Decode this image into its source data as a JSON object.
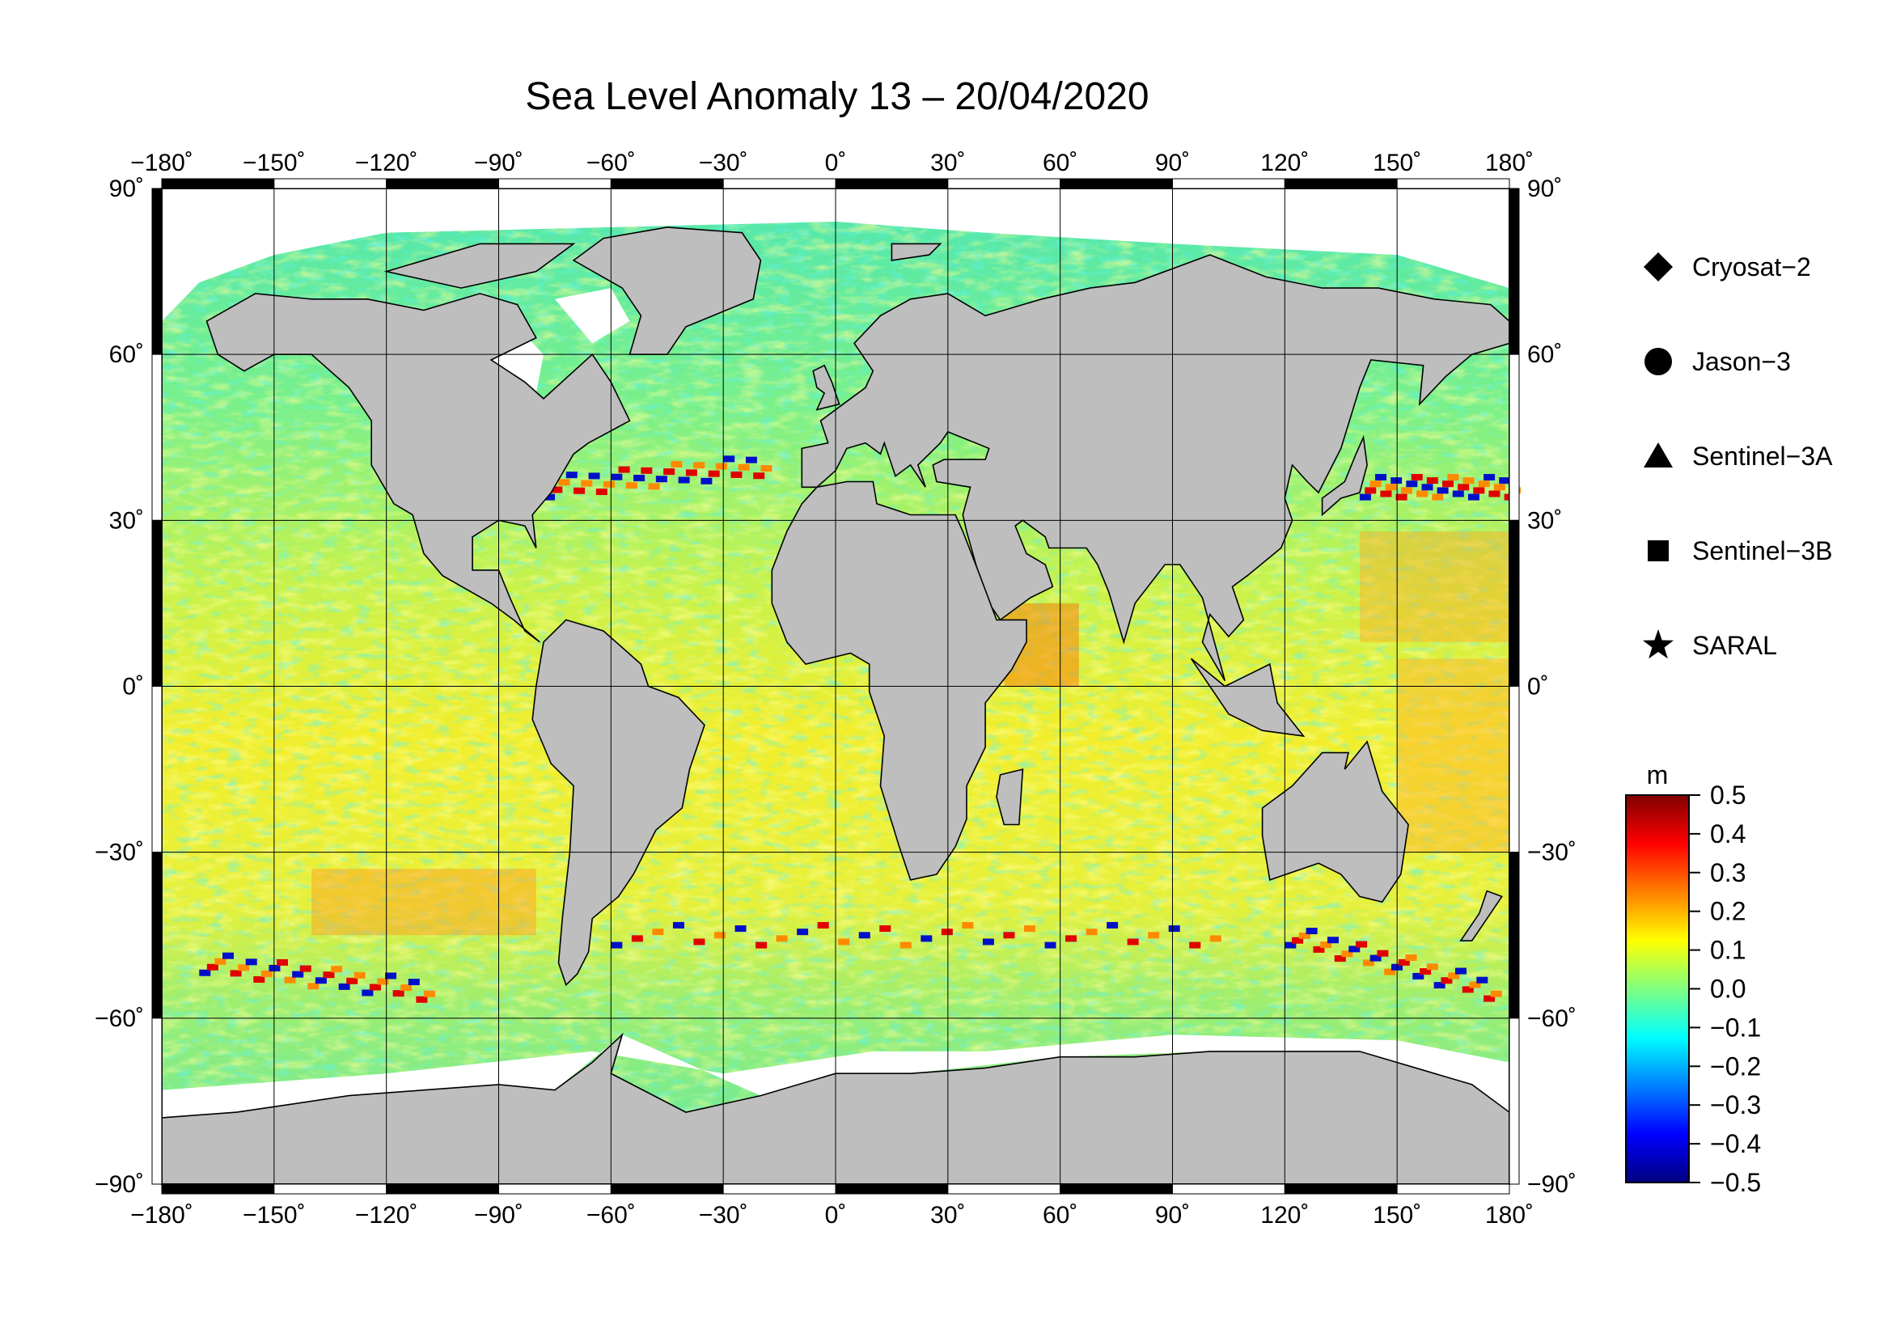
{
  "title": "Sea Level Anomaly 13 – 20/04/2020",
  "map": {
    "projection": "equirectangular",
    "lon_range": [
      -180,
      180
    ],
    "lat_range": [
      -90,
      90
    ],
    "lon_ticks": [
      -180,
      -150,
      -120,
      -90,
      -60,
      -30,
      0,
      30,
      60,
      90,
      120,
      150,
      180
    ],
    "lat_ticks": [
      90,
      60,
      30,
      0,
      -30,
      -60,
      -90
    ],
    "lon_tick_labels": [
      "−180˚",
      "−150˚",
      "−120˚",
      "−90˚",
      "−60˚",
      "−30˚",
      "0˚",
      "30˚",
      "60˚",
      "90˚",
      "120˚",
      "150˚",
      "180˚"
    ],
    "lat_tick_labels": [
      "90˚",
      "60˚",
      "30˚",
      "0˚",
      "−30˚",
      "−60˚",
      "−90˚"
    ],
    "grid": true,
    "land_color": "#bebebe",
    "ice_color": "#ffffff",
    "coastline_color": "#000000"
  },
  "legend": {
    "items": [
      {
        "label": "Cryosat−2",
        "symbol": "diamond"
      },
      {
        "label": "Jason−3",
        "symbol": "circle"
      },
      {
        "label": "Sentinel−3A",
        "symbol": "triangle"
      },
      {
        "label": "Sentinel−3B",
        "symbol": "square"
      },
      {
        "label": "SARAL",
        "symbol": "star"
      }
    ]
  },
  "colorbar": {
    "unit": "m",
    "min": -0.5,
    "max": 0.5,
    "tick_labels": [
      "0.5",
      "0.4",
      "0.3",
      "0.2",
      "0.1",
      "0.0",
      "−0.1",
      "−0.2",
      "−0.3",
      "−0.4",
      "−0.5"
    ],
    "colors": [
      "#000080",
      "#0000ff",
      "#0080ff",
      "#00ffff",
      "#80ff80",
      "#ffff00",
      "#ff8000",
      "#ff0000",
      "#800000"
    ]
  }
}
